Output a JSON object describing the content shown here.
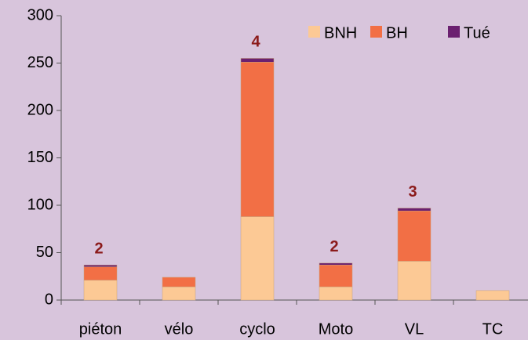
{
  "chart_data": {
    "type": "bar",
    "stacked": true,
    "categories": [
      "piéton",
      "vélo",
      "cyclo",
      "Moto",
      "VL",
      "TC"
    ],
    "series": [
      {
        "name": "BNH",
        "color": "#fcc995",
        "values": [
          21,
          14,
          88,
          14,
          41,
          10
        ]
      },
      {
        "name": "BH",
        "color": "#f26f45",
        "values": [
          14,
          10,
          163,
          23,
          53,
          null
        ]
      },
      {
        "name": "Tué",
        "color": "#6b2070",
        "values": [
          2,
          null,
          4,
          2,
          3,
          null
        ]
      }
    ],
    "data_labels_series": "Tué",
    "ylim": [
      0,
      300
    ],
    "yticks": [
      0,
      50,
      100,
      150,
      200,
      250,
      300
    ],
    "legend": "top-right"
  }
}
